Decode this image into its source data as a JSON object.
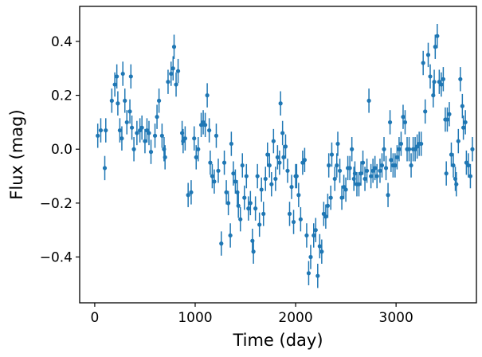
{
  "chart_data": {
    "type": "scatter",
    "title": "",
    "xlabel": "Time (day)",
    "ylabel": "Flux (mag)",
    "xlim": [
      -150,
      3800
    ],
    "ylim": [
      -0.57,
      0.53
    ],
    "xticks": [
      0,
      1000,
      2000,
      3000
    ],
    "xtick_labels": [
      "0",
      "1000",
      "2000",
      "3000"
    ],
    "yticks": [
      -0.4,
      -0.2,
      0.0,
      0.2,
      0.4
    ],
    "ytick_labels": [
      "−0.4",
      "−0.2",
      "0.0",
      "0.2",
      "0.4"
    ],
    "grid": false,
    "legend": "none",
    "color": "#1f77b4",
    "error_bar": 0.045,
    "points": [
      [
        30,
        0.05
      ],
      [
        60,
        0.07
      ],
      [
        100,
        -0.07
      ],
      [
        110,
        0.07
      ],
      [
        170,
        0.18
      ],
      [
        200,
        0.24
      ],
      [
        220,
        0.27
      ],
      [
        230,
        0.17
      ],
      [
        250,
        0.07
      ],
      [
        270,
        0.04
      ],
      [
        280,
        0.28
      ],
      [
        300,
        0.18
      ],
      [
        320,
        0.1
      ],
      [
        350,
        0.14
      ],
      [
        360,
        0.27
      ],
      [
        370,
        0.08
      ],
      [
        390,
        0.0
      ],
      [
        420,
        0.06
      ],
      [
        450,
        0.07
      ],
      [
        470,
        0.08
      ],
      [
        500,
        0.03
      ],
      [
        520,
        0.07
      ],
      [
        540,
        0.06
      ],
      [
        560,
        -0.01
      ],
      [
        600,
        0.05
      ],
      [
        620,
        0.12
      ],
      [
        640,
        0.18
      ],
      [
        670,
        0.05
      ],
      [
        690,
        0.0
      ],
      [
        700,
        -0.03
      ],
      [
        730,
        0.25
      ],
      [
        760,
        0.28
      ],
      [
        780,
        0.3
      ],
      [
        790,
        0.38
      ],
      [
        810,
        0.24
      ],
      [
        830,
        0.29
      ],
      [
        870,
        0.06
      ],
      [
        880,
        0.03
      ],
      [
        900,
        0.04
      ],
      [
        930,
        -0.17
      ],
      [
        960,
        -0.16
      ],
      [
        990,
        0.04
      ],
      [
        1010,
        -0.03
      ],
      [
        1030,
        0.0
      ],
      [
        1060,
        0.09
      ],
      [
        1080,
        0.1
      ],
      [
        1100,
        0.09
      ],
      [
        1120,
        0.2
      ],
      [
        1140,
        0.07
      ],
      [
        1150,
        -0.05
      ],
      [
        1170,
        -0.1
      ],
      [
        1190,
        -0.12
      ],
      [
        1210,
        0.05
      ],
      [
        1230,
        -0.08
      ],
      [
        1260,
        -0.35
      ],
      [
        1290,
        -0.05
      ],
      [
        1310,
        -0.16
      ],
      [
        1330,
        -0.2
      ],
      [
        1350,
        -0.32
      ],
      [
        1360,
        0.02
      ],
      [
        1380,
        -0.09
      ],
      [
        1400,
        -0.12
      ],
      [
        1420,
        -0.16
      ],
      [
        1430,
        -0.21
      ],
      [
        1450,
        -0.26
      ],
      [
        1470,
        -0.06
      ],
      [
        1490,
        -0.18
      ],
      [
        1510,
        -0.1
      ],
      [
        1530,
        -0.22
      ],
      [
        1550,
        -0.2
      ],
      [
        1570,
        -0.34
      ],
      [
        1580,
        -0.38
      ],
      [
        1600,
        -0.22
      ],
      [
        1620,
        -0.1
      ],
      [
        1640,
        -0.28
      ],
      [
        1660,
        -0.15
      ],
      [
        1680,
        -0.24
      ],
      [
        1700,
        -0.11
      ],
      [
        1720,
        -0.02
      ],
      [
        1740,
        -0.06
      ],
      [
        1760,
        -0.13
      ],
      [
        1780,
        0.03
      ],
      [
        1800,
        -0.11
      ],
      [
        1820,
        -0.03
      ],
      [
        1840,
        -0.05
      ],
      [
        1850,
        0.17
      ],
      [
        1870,
        0.06
      ],
      [
        1880,
        -0.03
      ],
      [
        1900,
        0.01
      ],
      [
        1920,
        -0.08
      ],
      [
        1940,
        -0.24
      ],
      [
        1960,
        -0.14
      ],
      [
        1980,
        -0.27
      ],
      [
        2000,
        -0.1
      ],
      [
        2010,
        -0.1
      ],
      [
        2030,
        -0.17
      ],
      [
        2050,
        -0.26
      ],
      [
        2070,
        -0.05
      ],
      [
        2090,
        -0.04
      ],
      [
        2110,
        -0.32
      ],
      [
        2130,
        -0.46
      ],
      [
        2150,
        -0.4
      ],
      [
        2180,
        -0.32
      ],
      [
        2200,
        -0.3
      ],
      [
        2220,
        -0.47
      ],
      [
        2240,
        -0.36
      ],
      [
        2260,
        -0.38
      ],
      [
        2280,
        -0.24
      ],
      [
        2300,
        -0.25
      ],
      [
        2320,
        -0.21
      ],
      [
        2330,
        -0.06
      ],
      [
        2350,
        -0.18
      ],
      [
        2360,
        -0.02
      ],
      [
        2390,
        -0.11
      ],
      [
        2410,
        -0.06
      ],
      [
        2420,
        0.02
      ],
      [
        2440,
        -0.08
      ],
      [
        2460,
        -0.18
      ],
      [
        2480,
        -0.14
      ],
      [
        2500,
        -0.15
      ],
      [
        2520,
        -0.07
      ],
      [
        2540,
        -0.07
      ],
      [
        2560,
        0.0
      ],
      [
        2580,
        -0.11
      ],
      [
        2590,
        -0.09
      ],
      [
        2610,
        -0.13
      ],
      [
        2630,
        -0.13
      ],
      [
        2650,
        -0.09
      ],
      [
        2670,
        -0.05
      ],
      [
        2690,
        -0.11
      ],
      [
        2710,
        -0.08
      ],
      [
        2730,
        0.18
      ],
      [
        2750,
        -0.1
      ],
      [
        2770,
        -0.08
      ],
      [
        2790,
        -0.07
      ],
      [
        2810,
        -0.1
      ],
      [
        2840,
        -0.08
      ],
      [
        2860,
        -0.06
      ],
      [
        2880,
        0.0
      ],
      [
        2900,
        -0.07
      ],
      [
        2920,
        -0.17
      ],
      [
        2940,
        0.1
      ],
      [
        2950,
        -0.04
      ],
      [
        2970,
        -0.06
      ],
      [
        2990,
        -0.06
      ],
      [
        3010,
        -0.03
      ],
      [
        3030,
        0.0
      ],
      [
        3050,
        0.02
      ],
      [
        3070,
        0.12
      ],
      [
        3090,
        0.1
      ],
      [
        3110,
        0.0
      ],
      [
        3130,
        0.0
      ],
      [
        3150,
        -0.06
      ],
      [
        3170,
        0.0
      ],
      [
        3190,
        0.0
      ],
      [
        3210,
        0.01
      ],
      [
        3230,
        0.02
      ],
      [
        3250,
        0.02
      ],
      [
        3270,
        0.32
      ],
      [
        3290,
        0.14
      ],
      [
        3320,
        0.35
      ],
      [
        3340,
        0.27
      ],
      [
        3370,
        0.2
      ],
      [
        3380,
        0.25
      ],
      [
        3390,
        0.38
      ],
      [
        3410,
        0.42
      ],
      [
        3430,
        0.25
      ],
      [
        3450,
        0.24
      ],
      [
        3470,
        0.26
      ],
      [
        3490,
        0.11
      ],
      [
        3500,
        -0.09
      ],
      [
        3510,
        0.11
      ],
      [
        3530,
        0.13
      ],
      [
        3550,
        -0.02
      ],
      [
        3570,
        -0.06
      ],
      [
        3590,
        -0.11
      ],
      [
        3600,
        -0.13
      ],
      [
        3620,
        0.03
      ],
      [
        3640,
        0.26
      ],
      [
        3660,
        0.16
      ],
      [
        3670,
        0.08
      ],
      [
        3690,
        0.1
      ],
      [
        3700,
        -0.05
      ],
      [
        3720,
        -0.06
      ],
      [
        3740,
        -0.1
      ],
      [
        3760,
        0.0
      ]
    ]
  }
}
